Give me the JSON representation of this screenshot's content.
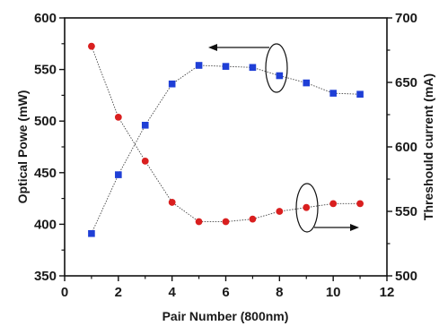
{
  "chart_data": {
    "type": "line",
    "title": "",
    "xlabel": "Pair Number (800nm)",
    "ylabel_left": "Optical Powe (mW)",
    "ylabel_right": "Threshould current (mA)",
    "xlim": [
      0,
      12
    ],
    "ylim_left": [
      350,
      600
    ],
    "ylim_right": [
      500,
      700
    ],
    "x_ticks": [
      "0",
      "2",
      "4",
      "6",
      "8",
      "10",
      "12"
    ],
    "y_left_ticks": [
      "350",
      "400",
      "450",
      "500",
      "550",
      "600"
    ],
    "y_right_ticks": [
      "500",
      "550",
      "600",
      "650",
      "700"
    ],
    "grid": false,
    "series": [
      {
        "axis": "left",
        "marker": "square",
        "color": "#1f3fd6",
        "x": [
          1,
          2,
          3,
          4,
          5,
          6,
          7,
          8,
          9,
          10,
          11
        ],
        "values": [
          391,
          448,
          496,
          536,
          554,
          553,
          552,
          544,
          537,
          527,
          526
        ]
      },
      {
        "axis": "right",
        "marker": "circle",
        "color": "#d91f1f",
        "x": [
          1,
          2,
          3,
          4,
          5,
          6,
          7,
          8,
          9,
          10,
          11
        ],
        "values": [
          678,
          623,
          589,
          557,
          542,
          542,
          544,
          550,
          553,
          556,
          556
        ]
      }
    ],
    "annotations": [
      {
        "type": "ellipse-with-arrow",
        "series_axis": "left",
        "points_to": "left"
      },
      {
        "type": "ellipse-with-arrow",
        "series_axis": "right",
        "points_to": "right"
      }
    ]
  }
}
